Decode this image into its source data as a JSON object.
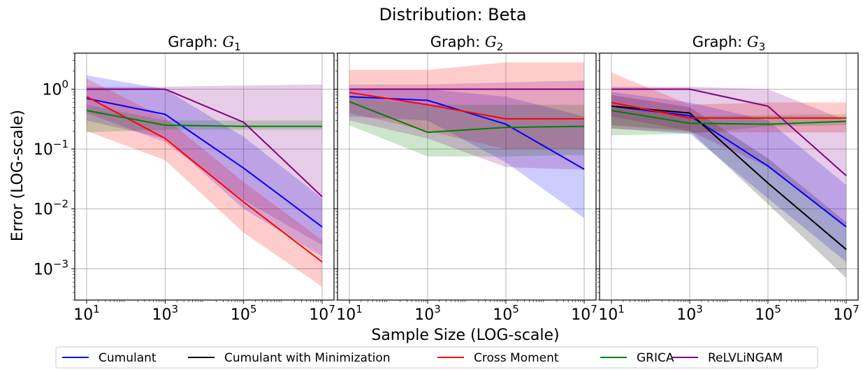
{
  "figure": {
    "suptitle": "Distribution: Beta",
    "xlabel": "Sample Size (LOG-scale)",
    "ylabel": "Error (LOG-scale)"
  },
  "legend": {
    "placement": "bottom-center",
    "entries": [
      {
        "label": "Cumulant",
        "color": "#0000ff"
      },
      {
        "label": "Cumulant with Minimization",
        "color": "#000000"
      },
      {
        "label": "Cross Moment",
        "color": "#ff0000"
      },
      {
        "label": "GRICA",
        "color": "#008000"
      },
      {
        "label": "ReLVLiNGAM",
        "color": "#800080"
      }
    ]
  },
  "chart_data": [
    {
      "type": "line",
      "title_prefix": "Graph: ",
      "title_symbol": "G",
      "title_subscript": "1",
      "xscale": "log",
      "yscale": "log",
      "xlim": [
        10,
        10000000
      ],
      "ylim": [
        0.0003,
        4
      ],
      "x": [
        10,
        1000,
        100000,
        10000000
      ],
      "xticks": [
        {
          "value": 10,
          "base": "10",
          "exp": "1"
        },
        {
          "value": 1000,
          "base": "10",
          "exp": "3"
        },
        {
          "value": 100000,
          "base": "10",
          "exp": "5"
        },
        {
          "value": 10000000,
          "base": "10",
          "exp": "7"
        }
      ],
      "yticks": [
        {
          "value": 0.001,
          "base": "10",
          "exp": "−3"
        },
        {
          "value": 0.01,
          "base": "10",
          "exp": "−2"
        },
        {
          "value": 0.1,
          "base": "10",
          "exp": "−1"
        },
        {
          "value": 1,
          "base": "10",
          "exp": "0"
        }
      ],
      "grid": true,
      "series": [
        {
          "name": "Cumulant",
          "color": "#0000ff",
          "values": [
            0.7,
            0.38,
            0.048,
            0.005
          ],
          "lower": [
            0.3,
            0.15,
            0.01,
            0.0016
          ],
          "upper": [
            1.7,
            1.0,
            0.16,
            0.015
          ]
        },
        {
          "name": "Cross Moment",
          "color": "#ff0000",
          "values": [
            0.75,
            0.15,
            0.013,
            0.0013
          ],
          "lower": [
            0.2,
            0.065,
            0.004,
            0.0005
          ],
          "upper": [
            1.5,
            0.33,
            0.028,
            0.003
          ]
        },
        {
          "name": "GRICA",
          "color": "#008000",
          "values": [
            0.44,
            0.25,
            0.24,
            0.24
          ],
          "lower": [
            0.19,
            0.21,
            0.21,
            0.21
          ],
          "upper": [
            0.55,
            0.3,
            0.3,
            0.3
          ]
        },
        {
          "name": "ReLVLiNGAM",
          "color": "#800080",
          "values": [
            1.0,
            1.0,
            0.28,
            0.016
          ],
          "lower": [
            0.4,
            0.13,
            0.014,
            0.0025
          ],
          "upper": [
            1.1,
            1.1,
            1.15,
            1.2
          ]
        }
      ]
    },
    {
      "type": "line",
      "title_prefix": "Graph: ",
      "title_symbol": "G",
      "title_subscript": "2",
      "xscale": "log",
      "yscale": "log",
      "xlim": [
        10,
        10000000
      ],
      "ylim": [
        0.0003,
        4
      ],
      "x": [
        10,
        1000,
        100000,
        10000000
      ],
      "xticks": [
        {
          "value": 10,
          "base": "10",
          "exp": "1"
        },
        {
          "value": 1000,
          "base": "10",
          "exp": "3"
        },
        {
          "value": 100000,
          "base": "10",
          "exp": "5"
        },
        {
          "value": 10000000,
          "base": "10",
          "exp": "7"
        }
      ],
      "yticks": [],
      "grid": true,
      "series": [
        {
          "name": "Cumulant",
          "color": "#0000ff",
          "values": [
            0.75,
            0.65,
            0.26,
            0.046
          ],
          "lower": [
            0.35,
            0.3,
            0.06,
            0.007
          ],
          "upper": [
            1.0,
            1.0,
            0.75,
            0.35
          ]
        },
        {
          "name": "Cross Moment",
          "color": "#ff0000",
          "values": [
            0.88,
            0.55,
            0.32,
            0.32
          ],
          "lower": [
            0.4,
            0.2,
            0.1,
            0.1
          ],
          "upper": [
            2.1,
            2.1,
            2.8,
            2.8
          ]
        },
        {
          "name": "GRICA",
          "color": "#008000",
          "values": [
            0.62,
            0.19,
            0.23,
            0.24
          ],
          "lower": [
            0.25,
            0.075,
            0.075,
            0.08
          ],
          "upper": [
            0.75,
            0.55,
            0.55,
            0.55
          ]
        },
        {
          "name": "ReLVLiNGAM",
          "color": "#800080",
          "values": [
            1.0,
            1.0,
            1.0,
            1.0
          ],
          "lower": [
            0.3,
            0.15,
            0.05,
            0.045
          ],
          "upper": [
            1.2,
            1.2,
            1.3,
            1.4
          ]
        }
      ]
    },
    {
      "type": "line",
      "title_prefix": "Graph: ",
      "title_symbol": "G",
      "title_subscript": "3",
      "xscale": "log",
      "yscale": "log",
      "xlim": [
        10,
        10000000
      ],
      "ylim": [
        0.0003,
        4
      ],
      "x": [
        10,
        1000,
        100000,
        10000000
      ],
      "xticks": [
        {
          "value": 10,
          "base": "10",
          "exp": "1"
        },
        {
          "value": 1000,
          "base": "10",
          "exp": "3"
        },
        {
          "value": 100000,
          "base": "10",
          "exp": "5"
        },
        {
          "value": 10000000,
          "base": "10",
          "exp": "7"
        }
      ],
      "yticks": [],
      "grid": true,
      "series": [
        {
          "name": "Cumulant",
          "color": "#0000ff",
          "values": [
            0.52,
            0.36,
            0.052,
            0.005
          ],
          "lower": [
            0.22,
            0.18,
            0.015,
            0.0013
          ],
          "upper": [
            0.9,
            0.6,
            0.3,
            0.025
          ]
        },
        {
          "name": "Cumulant with Minimization",
          "color": "#000000",
          "values": [
            0.52,
            0.4,
            0.027,
            0.0021
          ],
          "lower": [
            0.25,
            0.2,
            0.012,
            0.0007
          ],
          "upper": [
            0.8,
            0.5,
            0.07,
            0.006
          ]
        },
        {
          "name": "Cross Moment",
          "color": "#ff0000",
          "values": [
            0.6,
            0.33,
            0.33,
            0.33
          ],
          "lower": [
            0.22,
            0.19,
            0.19,
            0.19
          ],
          "upper": [
            1.9,
            0.55,
            0.6,
            0.6
          ]
        },
        {
          "name": "GRICA",
          "color": "#008000",
          "values": [
            0.44,
            0.27,
            0.26,
            0.29
          ],
          "lower": [
            0.17,
            0.18,
            0.24,
            0.25
          ],
          "upper": [
            0.55,
            0.35,
            0.37,
            0.38
          ]
        },
        {
          "name": "ReLVLiNGAM",
          "color": "#800080",
          "values": [
            1.0,
            1.0,
            0.52,
            0.036
          ],
          "lower": [
            0.35,
            0.2,
            0.05,
            0.005
          ],
          "upper": [
            1.1,
            1.1,
            1.0,
            0.3
          ]
        }
      ]
    }
  ]
}
